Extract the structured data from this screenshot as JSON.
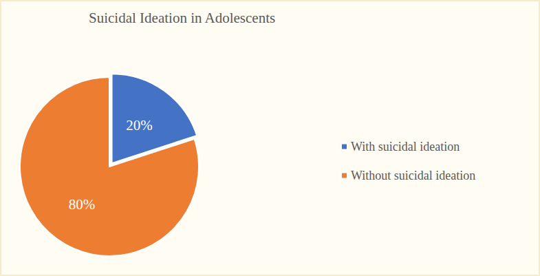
{
  "chart_data": {
    "type": "pie",
    "title": "Suicidal Ideation in Adolescents",
    "categories": [
      "With suicidal ideation",
      "Without suicidal ideation"
    ],
    "values": [
      20,
      80
    ],
    "value_labels": [
      "20%",
      "80%"
    ],
    "colors": [
      "#4472c4",
      "#ed7d31"
    ],
    "data_labels": true,
    "legend": "right"
  }
}
